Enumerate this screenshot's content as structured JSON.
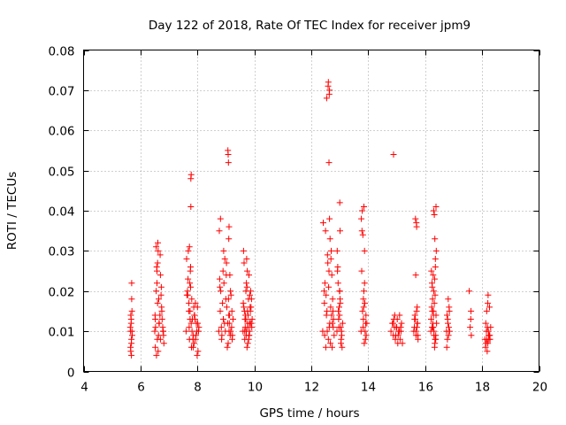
{
  "chart_data": {
    "type": "scatter",
    "title": "Day 122 of 2018, Rate Of TEC Index for receiver jpm9",
    "xlabel": "GPS time / hours",
    "ylabel": "ROTI / TECUs",
    "xlim": [
      4,
      20
    ],
    "ylim": [
      0,
      0.08
    ],
    "xticks": [
      4,
      6,
      8,
      10,
      12,
      14,
      16,
      18,
      20
    ],
    "xtick_labels": [
      "4",
      "6",
      "8",
      "10",
      "12",
      "14",
      "16",
      "18",
      "20"
    ],
    "yticks": [
      0,
      0.01,
      0.02,
      0.03,
      0.04,
      0.05,
      0.06,
      0.07,
      0.08
    ],
    "ytick_labels": [
      "0",
      "0.01",
      "0.02",
      "0.03",
      "0.04",
      "0.05",
      "0.06",
      "0.07",
      "0.08"
    ],
    "grid": true,
    "marker": "+",
    "marker_color": "#ff0000",
    "series": [
      {
        "name": "ROTI",
        "x": [
          5.65,
          5.67,
          5.68,
          5.7,
          5.66,
          5.69,
          5.64,
          5.71,
          5.67,
          5.68,
          5.66,
          5.7,
          5.65,
          5.69,
          5.68,
          6.5,
          6.52,
          6.55,
          6.6,
          6.62,
          6.58,
          6.65,
          6.7,
          6.75,
          6.8,
          6.55,
          6.6,
          6.52,
          6.58,
          6.63,
          6.68,
          6.72,
          6.78,
          6.82,
          6.57,
          6.61,
          6.66,
          6.7,
          6.74,
          6.53,
          6.59,
          6.64,
          6.69,
          6.76,
          6.81,
          6.51,
          6.62,
          6.73,
          6.79,
          6.56,
          7.6,
          7.65,
          7.7,
          7.72,
          7.75,
          7.78,
          7.8,
          7.85,
          7.9,
          7.95,
          8.0,
          8.05,
          7.68,
          7.73,
          7.82,
          7.88,
          7.93,
          7.98,
          8.02,
          7.63,
          7.71,
          7.76,
          7.84,
          7.91,
          7.99,
          7.67,
          7.74,
          7.86,
          7.96,
          7.62,
          7.79,
          7.89,
          8.04,
          7.77,
          7.77,
          7.78,
          7.76,
          7.74,
          7.7,
          7.72,
          7.81,
          7.87,
          7.94,
          8.01,
          7.66,
          8.75,
          8.8,
          8.82,
          8.85,
          8.9,
          8.95,
          9.0,
          9.05,
          9.1,
          9.15,
          9.2,
          9.25,
          8.78,
          8.88,
          8.92,
          8.98,
          9.02,
          9.08,
          9.12,
          9.18,
          9.22,
          8.77,
          8.84,
          8.93,
          9.03,
          9.13,
          9.23,
          8.81,
          8.91,
          9.01,
          9.11,
          9.21,
          8.79,
          8.86,
          8.96,
          9.06,
          9.16,
          9.07,
          9.08,
          9.09,
          9.1,
          9.11,
          9.09,
          9.14,
          9.17,
          9.6,
          9.65,
          9.7,
          9.75,
          9.8,
          9.85,
          9.9,
          9.62,
          9.68,
          9.72,
          9.78,
          9.82,
          9.88,
          9.92,
          9.64,
          9.74,
          9.84,
          9.66,
          9.76,
          9.86,
          9.61,
          9.71,
          9.81,
          9.91,
          9.67,
          9.77,
          9.87,
          9.63,
          9.73,
          9.83,
          9.69,
          9.79,
          9.89,
          9.74,
          9.81,
          9.77,
          9.7,
          9.85,
          9.66,
          9.83,
          9.76,
          9.72,
          12.4,
          12.45,
          12.5,
          12.55,
          12.6,
          12.62,
          12.65,
          12.7,
          12.75,
          12.8,
          12.48,
          12.53,
          12.58,
          12.63,
          12.68,
          12.73,
          12.78,
          12.42,
          12.52,
          12.57,
          12.67,
          12.72,
          12.46,
          12.56,
          12.66,
          12.76,
          12.61,
          12.62,
          12.63,
          12.64,
          12.6,
          12.59,
          12.54,
          12.69,
          12.74,
          12.51,
          12.47,
          12.64,
          12.71,
          12.77,
          12.9,
          12.95,
          13.0,
          13.05,
          13.1,
          12.92,
          12.97,
          13.02,
          13.07,
          12.94,
          12.99,
          13.04,
          12.91,
          12.96,
          13.01,
          13.06,
          12.93,
          12.98,
          13.03,
          13.08,
          13.0,
          13.01,
          12.99,
          13.75,
          13.8,
          13.85,
          13.9,
          13.95,
          13.78,
          13.83,
          13.88,
          13.93,
          13.77,
          13.82,
          13.87,
          13.92,
          13.79,
          13.84,
          13.89,
          13.81,
          13.86,
          13.91,
          13.76,
          13.85,
          13.87,
          13.83,
          14.8,
          14.85,
          14.9,
          14.95,
          15.0,
          15.05,
          15.1,
          15.15,
          15.2,
          14.87,
          14.92,
          14.97,
          15.02,
          15.07,
          15.12,
          15.17,
          14.89,
          14.99,
          15.09,
          14.93,
          14.88,
          15.04,
          15.14,
          15.6,
          15.65,
          15.7,
          15.75,
          15.62,
          15.67,
          15.72,
          15.64,
          15.69,
          15.74,
          15.66,
          15.71,
          15.63,
          15.68,
          15.73,
          15.7,
          15.72,
          15.68,
          16.2,
          16.25,
          16.3,
          16.35,
          16.4,
          16.22,
          16.27,
          16.32,
          16.37,
          16.24,
          16.29,
          16.34,
          16.39,
          16.21,
          16.26,
          16.31,
          16.36,
          16.23,
          16.28,
          16.33,
          16.38,
          16.3,
          16.32,
          16.34,
          16.36,
          16.28,
          16.25,
          16.35,
          16.31,
          16.27,
          16.33,
          16.29,
          16.37,
          16.24,
          16.38,
          16.75,
          16.8,
          16.85,
          16.78,
          16.83,
          16.77,
          16.82,
          16.79,
          16.84,
          16.81,
          16.76,
          16.86,
          17.55,
          17.6,
          17.62,
          17.58,
          17.61,
          18.1,
          18.15,
          18.2,
          18.25,
          18.3,
          18.12,
          18.17,
          18.22,
          18.27,
          18.14,
          18.19,
          18.24,
          18.16,
          18.21,
          18.26,
          18.18,
          18.23,
          18.13,
          18.28,
          18.2
        ],
        "y": [
          0.01,
          0.012,
          0.008,
          0.015,
          0.005,
          0.022,
          0.011,
          0.009,
          0.013,
          0.007,
          0.014,
          0.01,
          0.006,
          0.018,
          0.004,
          0.01,
          0.013,
          0.02,
          0.027,
          0.03,
          0.025,
          0.012,
          0.008,
          0.015,
          0.01,
          0.031,
          0.017,
          0.006,
          0.022,
          0.009,
          0.014,
          0.019,
          0.011,
          0.007,
          0.026,
          0.032,
          0.012,
          0.024,
          0.016,
          0.011,
          0.008,
          0.018,
          0.029,
          0.013,
          0.009,
          0.014,
          0.005,
          0.021,
          0.01,
          0.004,
          0.01,
          0.02,
          0.015,
          0.008,
          0.025,
          0.012,
          0.018,
          0.006,
          0.014,
          0.009,
          0.016,
          0.011,
          0.03,
          0.022,
          0.013,
          0.007,
          0.017,
          0.01,
          0.005,
          0.019,
          0.011,
          0.026,
          0.008,
          0.013,
          0.004,
          0.023,
          0.015,
          0.009,
          0.012,
          0.028,
          0.006,
          0.014,
          0.01,
          0.041,
          0.048,
          0.049,
          0.021,
          0.013,
          0.017,
          0.031,
          0.01,
          0.016,
          0.008,
          0.012,
          0.019,
          0.01,
          0.015,
          0.02,
          0.008,
          0.025,
          0.012,
          0.018,
          0.006,
          0.014,
          0.009,
          0.011,
          0.013,
          0.023,
          0.017,
          0.03,
          0.01,
          0.027,
          0.007,
          0.012,
          0.019,
          0.008,
          0.035,
          0.011,
          0.022,
          0.016,
          0.014,
          0.009,
          0.038,
          0.013,
          0.024,
          0.01,
          0.015,
          0.021,
          0.009,
          0.028,
          0.012,
          0.02,
          0.055,
          0.054,
          0.052,
          0.033,
          0.036,
          0.018,
          0.024,
          0.01,
          0.01,
          0.015,
          0.02,
          0.025,
          0.008,
          0.012,
          0.018,
          0.03,
          0.011,
          0.022,
          0.014,
          0.009,
          0.016,
          0.013,
          0.027,
          0.006,
          0.019,
          0.01,
          0.012,
          0.015,
          0.017,
          0.009,
          0.024,
          0.011,
          0.013,
          0.007,
          0.02,
          0.016,
          0.028,
          0.01,
          0.014,
          0.018,
          0.012,
          0.021,
          0.009,
          0.011,
          0.013,
          0.016,
          0.008,
          0.012,
          0.015,
          0.01,
          0.01,
          0.02,
          0.035,
          0.015,
          0.008,
          0.025,
          0.012,
          0.03,
          0.018,
          0.009,
          0.022,
          0.014,
          0.027,
          0.011,
          0.016,
          0.006,
          0.013,
          0.037,
          0.019,
          0.029,
          0.007,
          0.024,
          0.017,
          0.01,
          0.033,
          0.015,
          0.021,
          0.052,
          0.069,
          0.07,
          0.072,
          0.071,
          0.068,
          0.028,
          0.012,
          0.006,
          0.009,
          0.038,
          0.014,
          0.011,
          0.01,
          0.015,
          0.02,
          0.008,
          0.012,
          0.025,
          0.011,
          0.017,
          0.009,
          0.022,
          0.014,
          0.007,
          0.03,
          0.013,
          0.018,
          0.01,
          0.026,
          0.016,
          0.011,
          0.006,
          0.042,
          0.035,
          0.02,
          0.01,
          0.015,
          0.02,
          0.008,
          0.012,
          0.035,
          0.013,
          0.017,
          0.009,
          0.025,
          0.011,
          0.022,
          0.014,
          0.04,
          0.016,
          0.01,
          0.034,
          0.007,
          0.012,
          0.038,
          0.041,
          0.03,
          0.018,
          0.01,
          0.012,
          0.013,
          0.008,
          0.011,
          0.009,
          0.014,
          0.01,
          0.007,
          0.012,
          0.011,
          0.009,
          0.013,
          0.01,
          0.008,
          0.012,
          0.054,
          0.011,
          0.01,
          0.014,
          0.009,
          0.007,
          0.011,
          0.01,
          0.013,
          0.015,
          0.008,
          0.011,
          0.024,
          0.012,
          0.014,
          0.037,
          0.009,
          0.038,
          0.011,
          0.013,
          0.01,
          0.012,
          0.036,
          0.016,
          0.009,
          0.01,
          0.015,
          0.02,
          0.008,
          0.012,
          0.025,
          0.011,
          0.017,
          0.009,
          0.022,
          0.014,
          0.007,
          0.03,
          0.013,
          0.018,
          0.01,
          0.026,
          0.016,
          0.011,
          0.006,
          0.041,
          0.04,
          0.039,
          0.033,
          0.028,
          0.024,
          0.021,
          0.019,
          0.009,
          0.012,
          0.023,
          0.015,
          0.008,
          0.011,
          0.014,
          0.01,
          0.012,
          0.015,
          0.008,
          0.011,
          0.014,
          0.009,
          0.013,
          0.016,
          0.018,
          0.006,
          0.01,
          0.02,
          0.013,
          0.009,
          0.011,
          0.015,
          0.008,
          0.01,
          0.007,
          0.009,
          0.011,
          0.006,
          0.008,
          0.01,
          0.009,
          0.007,
          0.011,
          0.008,
          0.015,
          0.019,
          0.016,
          0.005,
          0.009,
          0.012,
          0.008,
          0.017
        ]
      }
    ]
  }
}
